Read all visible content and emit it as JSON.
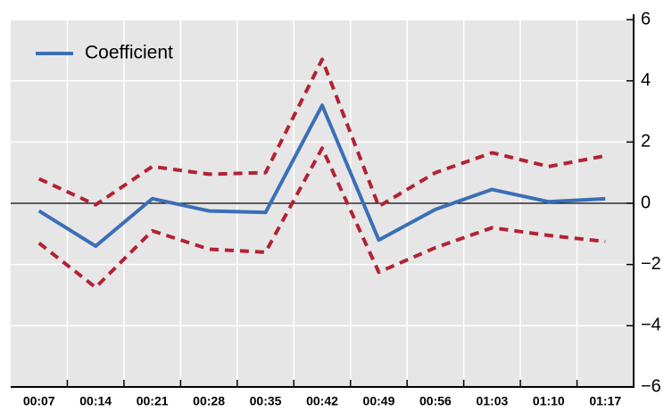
{
  "chart_data": {
    "type": "line",
    "categories": [
      "00:07",
      "00:14",
      "00:21",
      "00:28",
      "00:35",
      "00:42",
      "00:49",
      "00:56",
      "01:03",
      "01:10",
      "01:17"
    ],
    "series": [
      {
        "name": "Coefficient",
        "color": "#3a6fb7",
        "values": [
          -0.25,
          -1.4,
          0.15,
          -0.25,
          -0.3,
          3.2,
          -1.2,
          -0.2,
          0.45,
          0.05,
          0.15
        ]
      }
    ],
    "bands": [
      {
        "color": "#b22234",
        "values": [
          0.8,
          -0.05,
          1.2,
          0.95,
          1.0,
          4.7,
          -0.1,
          1.0,
          1.65,
          1.2,
          1.55
        ]
      },
      {
        "color": "#b22234",
        "values": [
          -1.3,
          -2.75,
          -0.9,
          -1.5,
          -1.6,
          1.8,
          -2.25,
          -1.45,
          -0.8,
          -1.05,
          -1.25
        ]
      }
    ],
    "ylim": [
      -6,
      6
    ],
    "yticks": [
      {
        "value": -6,
        "label": "−6"
      },
      {
        "value": -4,
        "label": "−4"
      },
      {
        "value": -2,
        "label": "−2"
      },
      0,
      2,
      4,
      6
    ],
    "grid": true,
    "legend": "upper left"
  }
}
